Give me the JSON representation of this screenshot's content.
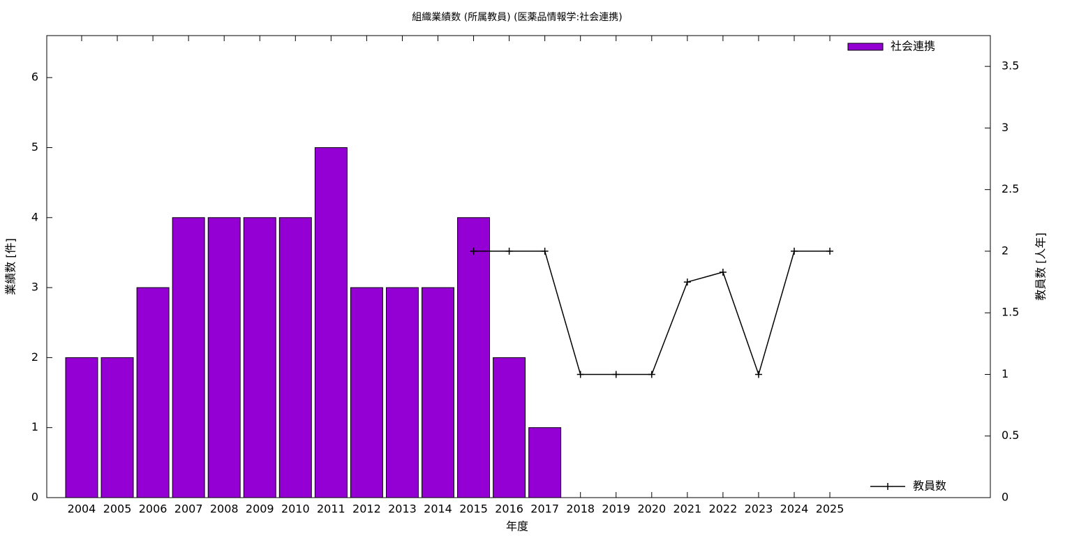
{
  "chart_data": {
    "type": "bar",
    "title": "組織業績数 (所属教員) (医薬品情報学:社会連携)",
    "xlabel": "年度",
    "ylabel": "業績数 [件]",
    "y2label": "教員数 [人年]",
    "categories": [
      "2004",
      "2005",
      "2006",
      "2007",
      "2008",
      "2009",
      "2010",
      "2011",
      "2012",
      "2013",
      "2014",
      "2015",
      "2016",
      "2017",
      "2018",
      "2019",
      "2020",
      "2021",
      "2022",
      "2023",
      "2024",
      "2025"
    ],
    "series": [
      {
        "name": "社会連携",
        "type": "bar",
        "color": "#9400d3",
        "values": [
          2,
          2,
          3,
          4,
          4,
          4,
          4,
          5,
          3,
          3,
          3,
          4,
          2,
          1,
          null,
          null,
          null,
          null,
          null,
          null,
          null,
          null
        ]
      },
      {
        "name": "教員数",
        "type": "line",
        "axis": "y2",
        "color": "#000000",
        "values": [
          null,
          null,
          null,
          null,
          null,
          null,
          null,
          null,
          null,
          null,
          null,
          2,
          2,
          2,
          1,
          1,
          1,
          1.75,
          1.83,
          1,
          2,
          2
        ]
      }
    ],
    "ylim": [
      0,
      6.6
    ],
    "yticks": [
      0,
      1,
      2,
      3,
      4,
      5,
      6
    ],
    "y2lim": [
      0,
      3.75
    ],
    "y2ticks": [
      0,
      0.5,
      1,
      1.5,
      2,
      2.5,
      3,
      3.5
    ]
  }
}
